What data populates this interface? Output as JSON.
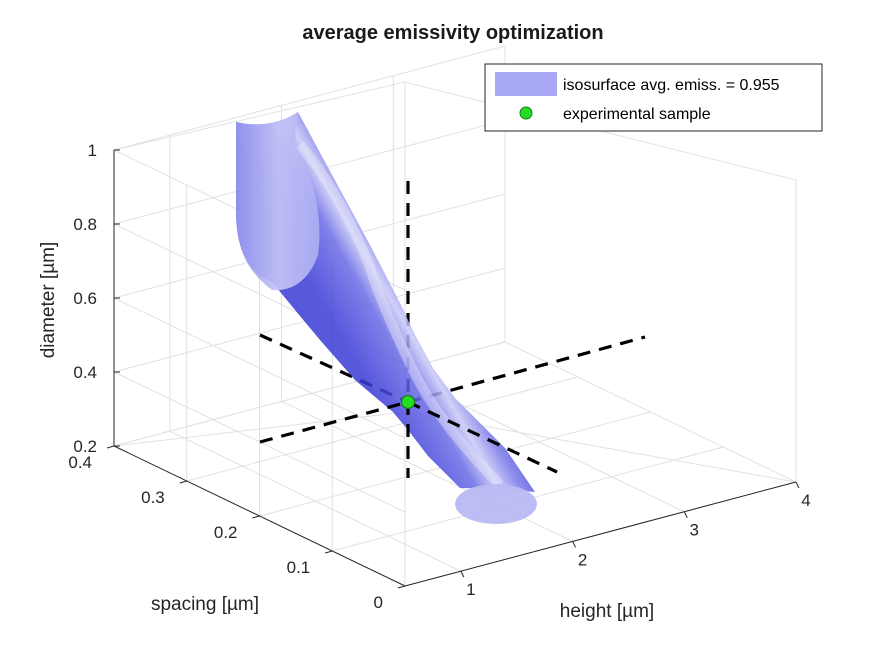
{
  "chart_data": {
    "type": "surface3d",
    "title": "average emissivity optimization",
    "xlabel": "height [µm]",
    "ylabel": "spacing [µm]",
    "zlabel": "diameter [µm]",
    "xlim": [
      0.5,
      4
    ],
    "ylim": [
      0,
      0.4
    ],
    "zlim": [
      0.2,
      1
    ],
    "x_ticks": [
      "1",
      "2",
      "3",
      "4"
    ],
    "y_ticks": [
      "0",
      "0.1",
      "0.2",
      "0.3",
      "0.4"
    ],
    "z_ticks": [
      "0.2",
      "0.4",
      "0.6",
      "0.8",
      "1"
    ],
    "grid": true,
    "legend_position": "top-right",
    "series": [
      {
        "name": "isosurface avg. emiss. = 0.955",
        "kind": "isosurface",
        "isovalue": 0.955,
        "color": "#6e6ef0",
        "spine": [
          {
            "x": 0.62,
            "y": 0.38,
            "z": 1.0
          },
          {
            "x": 1.5,
            "y": 0.3,
            "z": 0.85
          },
          {
            "x": 2.2,
            "y": 0.2,
            "z": 0.65
          },
          {
            "x": 2.3,
            "y": 0.18,
            "z": 0.5
          },
          {
            "x": 2.7,
            "y": 0.05,
            "z": 0.24
          }
        ]
      },
      {
        "name": "experimental sample",
        "kind": "marker",
        "color": "#22dd22",
        "x": 2.0,
        "y": 0.18,
        "z": 0.46
      }
    ],
    "reference_lines": [
      {
        "through": "experimental sample",
        "axis": "height",
        "from": 0.5,
        "to": 4
      },
      {
        "through": "experimental sample",
        "axis": "spacing",
        "from": 0,
        "to": 0.4
      },
      {
        "through": "experimental sample",
        "axis": "diameter",
        "from": 0.2,
        "to": 1.0
      }
    ]
  }
}
